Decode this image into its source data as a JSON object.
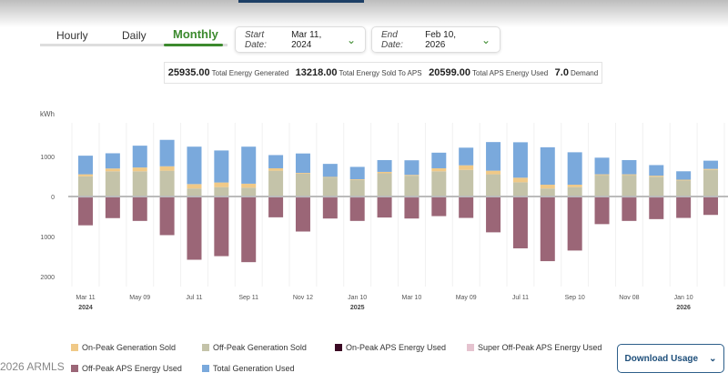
{
  "tabs": [
    {
      "label": "Hourly"
    },
    {
      "label": "Daily"
    },
    {
      "label": "Monthly",
      "active": true
    }
  ],
  "start_date": {
    "label": "Start Date:",
    "value": "Mar 11, 2024"
  },
  "end_date": {
    "label": "End Date:",
    "value": "Feb 10, 2026"
  },
  "summary": [
    {
      "value": "25935.00",
      "label": "Total Energy Generated"
    },
    {
      "value": "13218.00",
      "label": "Total Energy Sold To APS"
    },
    {
      "value": "20599.00",
      "label": "Total APS Energy Used"
    },
    {
      "value": "7.0",
      "label": "Demand"
    }
  ],
  "download_label": "Download Usage",
  "watermark": "2026 ARMLS",
  "colors": {
    "accent": "#3c8a2e",
    "on_peak_sold": "#f0c987",
    "off_peak_sold": "#c4c3a9",
    "on_peak_used": "#3b0a24",
    "super_off_peak_used": "#e5c3cf",
    "off_peak_used": "#9b6677",
    "total_gen_used": "#7aa9dc"
  },
  "chart_data": {
    "type": "bar",
    "stacked": true,
    "ylabel": "kWh",
    "ylim": [
      -2300,
      1600
    ],
    "yticks": [
      {
        "v": 1000,
        "label": "1000"
      },
      {
        "v": 0,
        "label": "0"
      },
      {
        "v": -1000,
        "label": "1000"
      },
      {
        "v": -2000,
        "label": "2000"
      }
    ],
    "xticks": [
      {
        "i": 0,
        "label": "Mar 11",
        "year": "2024"
      },
      {
        "i": 2,
        "label": "May 09"
      },
      {
        "i": 4,
        "label": "Jul 11"
      },
      {
        "i": 6,
        "label": "Sep 11"
      },
      {
        "i": 8,
        "label": "Nov 12"
      },
      {
        "i": 10,
        "label": "Jan 10",
        "year": "2025"
      },
      {
        "i": 12,
        "label": "Mar 10"
      },
      {
        "i": 14,
        "label": "May 09"
      },
      {
        "i": 16,
        "label": "Jul 11"
      },
      {
        "i": 18,
        "label": "Sep 10"
      },
      {
        "i": 20,
        "label": "Nov 08"
      },
      {
        "i": 22,
        "label": "Jan 10",
        "year": "2026"
      }
    ],
    "series": [
      {
        "name": "Off-Peak Generation Sold",
        "color": "#c4c3a9",
        "values": [
          505,
          630,
          630,
          645,
          200,
          235,
          220,
          645,
          570,
          475,
          410,
          580,
          520,
          630,
          665,
          555,
          355,
          200,
          235,
          535,
          535,
          495,
          400,
          665
        ]
      },
      {
        "name": "On-Peak Generation Sold",
        "color": "#f0c987",
        "values": [
          50,
          70,
          95,
          110,
          110,
          115,
          100,
          60,
          20,
          15,
          20,
          35,
          20,
          75,
          115,
          90,
          115,
          95,
          60,
          20,
          20,
          25,
          20,
          25
        ]
      },
      {
        "name": "Total Generation Used",
        "color": "#7aa9dc",
        "values": [
          465,
          380,
          545,
          660,
          935,
          800,
          925,
          330,
          485,
          325,
          310,
          295,
          365,
          390,
          440,
          715,
          885,
          935,
          810,
          415,
          355,
          265,
          210,
          205
        ]
      },
      {
        "name": "On-Peak APS Energy Used",
        "color": "#3b0a24",
        "values": [
          -25,
          -15,
          -15,
          -15,
          -15,
          -15,
          -15,
          -15,
          -25,
          -25,
          -25,
          -20,
          -25,
          -15,
          -15,
          -15,
          -15,
          -15,
          -15,
          -15,
          -25,
          -25,
          -20,
          -15
        ]
      },
      {
        "name": "Off-Peak APS Energy Used",
        "color": "#9b6677",
        "values": [
          -695,
          -525,
          -595,
          -950,
          -1565,
          -1475,
          -1625,
          -505,
          -850,
          -525,
          -585,
          -505,
          -525,
          -475,
          -520,
          -880,
          -1280,
          -1600,
          -1335,
          -675,
          -585,
          -540,
          -515,
          -445
        ]
      },
      {
        "name": "Super Off-Peak APS Energy Used",
        "color": "#e5c3cf",
        "values": [
          0,
          0,
          0,
          0,
          0,
          0,
          0,
          0,
          0,
          0,
          0,
          0,
          0,
          0,
          0,
          0,
          0,
          0,
          0,
          0,
          0,
          0,
          0,
          0
        ]
      }
    ]
  }
}
